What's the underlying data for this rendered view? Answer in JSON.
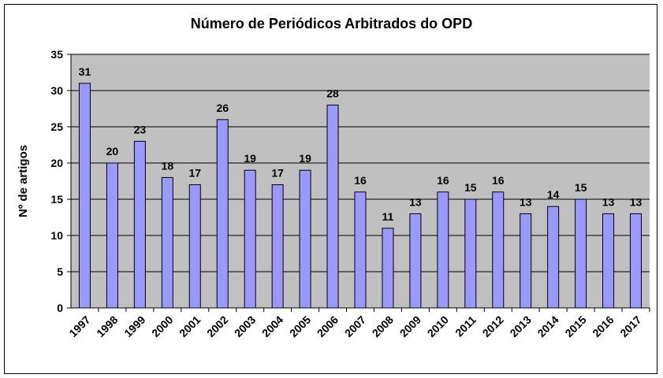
{
  "chart_data": {
    "type": "bar",
    "title": "Número de Periódicos Arbitrados do OPD",
    "xlabel": "",
    "ylabel": "Nº de artigos",
    "categories": [
      "1997",
      "1998",
      "1999",
      "2000",
      "2001",
      "2002",
      "2003",
      "2004",
      "2005",
      "2006",
      "2007",
      "2008",
      "2009",
      "2010",
      "2011",
      "2012",
      "2013",
      "2014",
      "2015",
      "2016",
      "2017"
    ],
    "values": [
      31,
      20,
      23,
      18,
      17,
      26,
      19,
      17,
      19,
      28,
      16,
      11,
      13,
      16,
      15,
      16,
      13,
      14,
      15,
      13,
      13
    ],
    "ylim": [
      0,
      35
    ],
    "yticks": [
      0,
      5,
      10,
      15,
      20,
      25,
      30,
      35
    ],
    "grid": true,
    "legend": "none",
    "colors": {
      "bar_fill": "#9999ff",
      "bar_stroke": "#000000",
      "plot_background": "#c0c0c0",
      "gridline": "#000000"
    }
  }
}
